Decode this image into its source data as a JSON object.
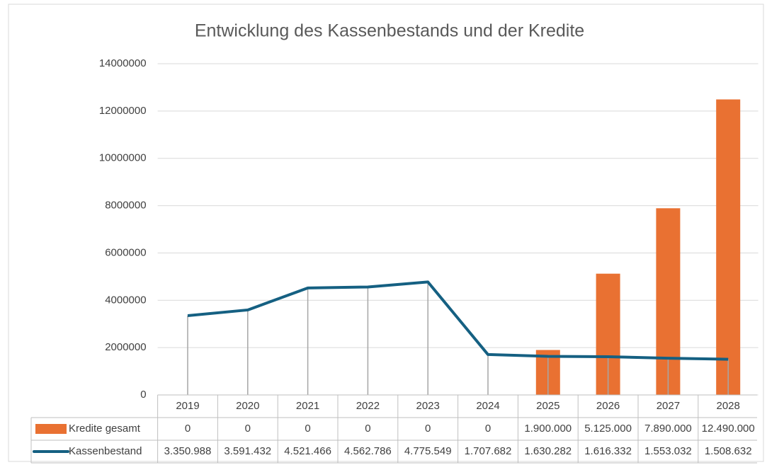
{
  "chart_data": {
    "type": "bar",
    "title": "Entwicklung des Kassenbestands und der Kredite",
    "categories": [
      "2019",
      "2020",
      "2021",
      "2022",
      "2023",
      "2024",
      "2025",
      "2026",
      "2027",
      "2028"
    ],
    "series": [
      {
        "name": "Kredite gesamt",
        "type": "bar",
        "color": "#e97132",
        "values": [
          0,
          0,
          0,
          0,
          0,
          0,
          1900000,
          5125000,
          7890000,
          12490000
        ],
        "value_labels": [
          "0",
          "0",
          "0",
          "0",
          "0",
          "0",
          "1.900.000",
          "5.125.000",
          "7.890.000",
          "12.490.000"
        ]
      },
      {
        "name": "Kassenbestand",
        "type": "line",
        "color": "#156082",
        "values": [
          3350988,
          3591432,
          4521466,
          4562786,
          4775549,
          1707682,
          1630282,
          1616332,
          1553032,
          1508632
        ],
        "value_labels": [
          "3.350.988",
          "3.591.432",
          "4.521.466",
          "4.562.786",
          "4.775.549",
          "1.707.682",
          "1.630.282",
          "1.616.332",
          "1.553.032",
          "1.508.632"
        ]
      }
    ],
    "ylim": [
      0,
      14000000
    ],
    "yticks": [
      0,
      2000000,
      4000000,
      6000000,
      8000000,
      10000000,
      12000000,
      14000000
    ],
    "grid": true,
    "drop_lines": true
  }
}
